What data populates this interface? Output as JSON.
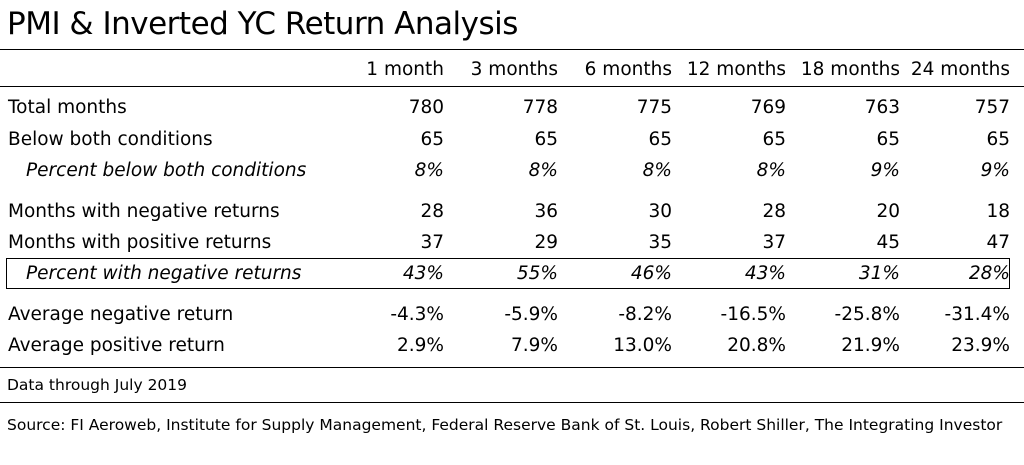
{
  "title": "PMI & Inverted YC Return Analysis",
  "columns": [
    "1 month",
    "3 months",
    "6 months",
    "12 months",
    "18 months",
    "24 months"
  ],
  "rows": [
    {
      "label": "Total months",
      "values": [
        "780",
        "778",
        "775",
        "769",
        "763",
        "757"
      ]
    },
    {
      "label": "Below both conditions",
      "values": [
        "65",
        "65",
        "65",
        "65",
        "65",
        "65"
      ]
    },
    {
      "label": "Percent below both conditions",
      "values": [
        "8%",
        "8%",
        "8%",
        "8%",
        "9%",
        "9%"
      ]
    },
    {
      "label": "Months with negative returns",
      "values": [
        "28",
        "36",
        "30",
        "28",
        "20",
        "18"
      ]
    },
    {
      "label": "Months with positive returns",
      "values": [
        "37",
        "29",
        "35",
        "37",
        "45",
        "47"
      ]
    },
    {
      "label": "Percent with negative returns",
      "values": [
        "43%",
        "55%",
        "46%",
        "43%",
        "31%",
        "28%"
      ]
    },
    {
      "label": "Average negative return",
      "values": [
        "-4.3%",
        "-5.9%",
        "-8.2%",
        "-16.5%",
        "-25.8%",
        "-31.4%"
      ]
    },
    {
      "label": "Average positive return",
      "values": [
        "2.9%",
        "7.9%",
        "13.0%",
        "20.8%",
        "21.9%",
        "23.9%"
      ]
    }
  ],
  "notes": {
    "data_through": "Data through July 2019",
    "source": "Source: FI Aeroweb, Institute for Supply Management, Federal Reserve Bank of St. Louis, Robert Shiller, The Integrating Investor"
  }
}
